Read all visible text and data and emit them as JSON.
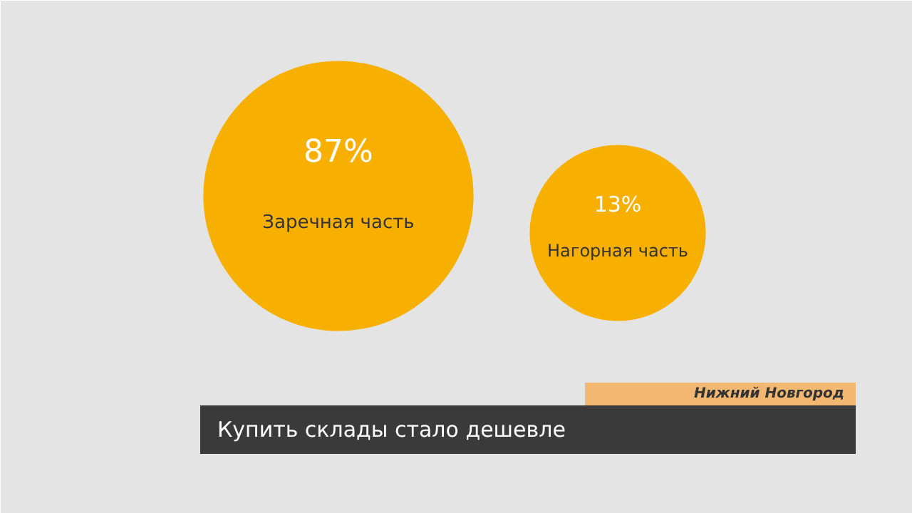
{
  "chart_data": {
    "type": "other",
    "title": "Купить склады стало дешевле",
    "categories": [
      "Заречная часть",
      "Нагорная часть"
    ],
    "values": [
      87,
      13
    ],
    "value_labels": [
      "87%",
      "13%"
    ],
    "colors": [
      "#f7b000",
      "#f7b000"
    ],
    "annotations": [
      "Нижний Новгород"
    ]
  }
}
